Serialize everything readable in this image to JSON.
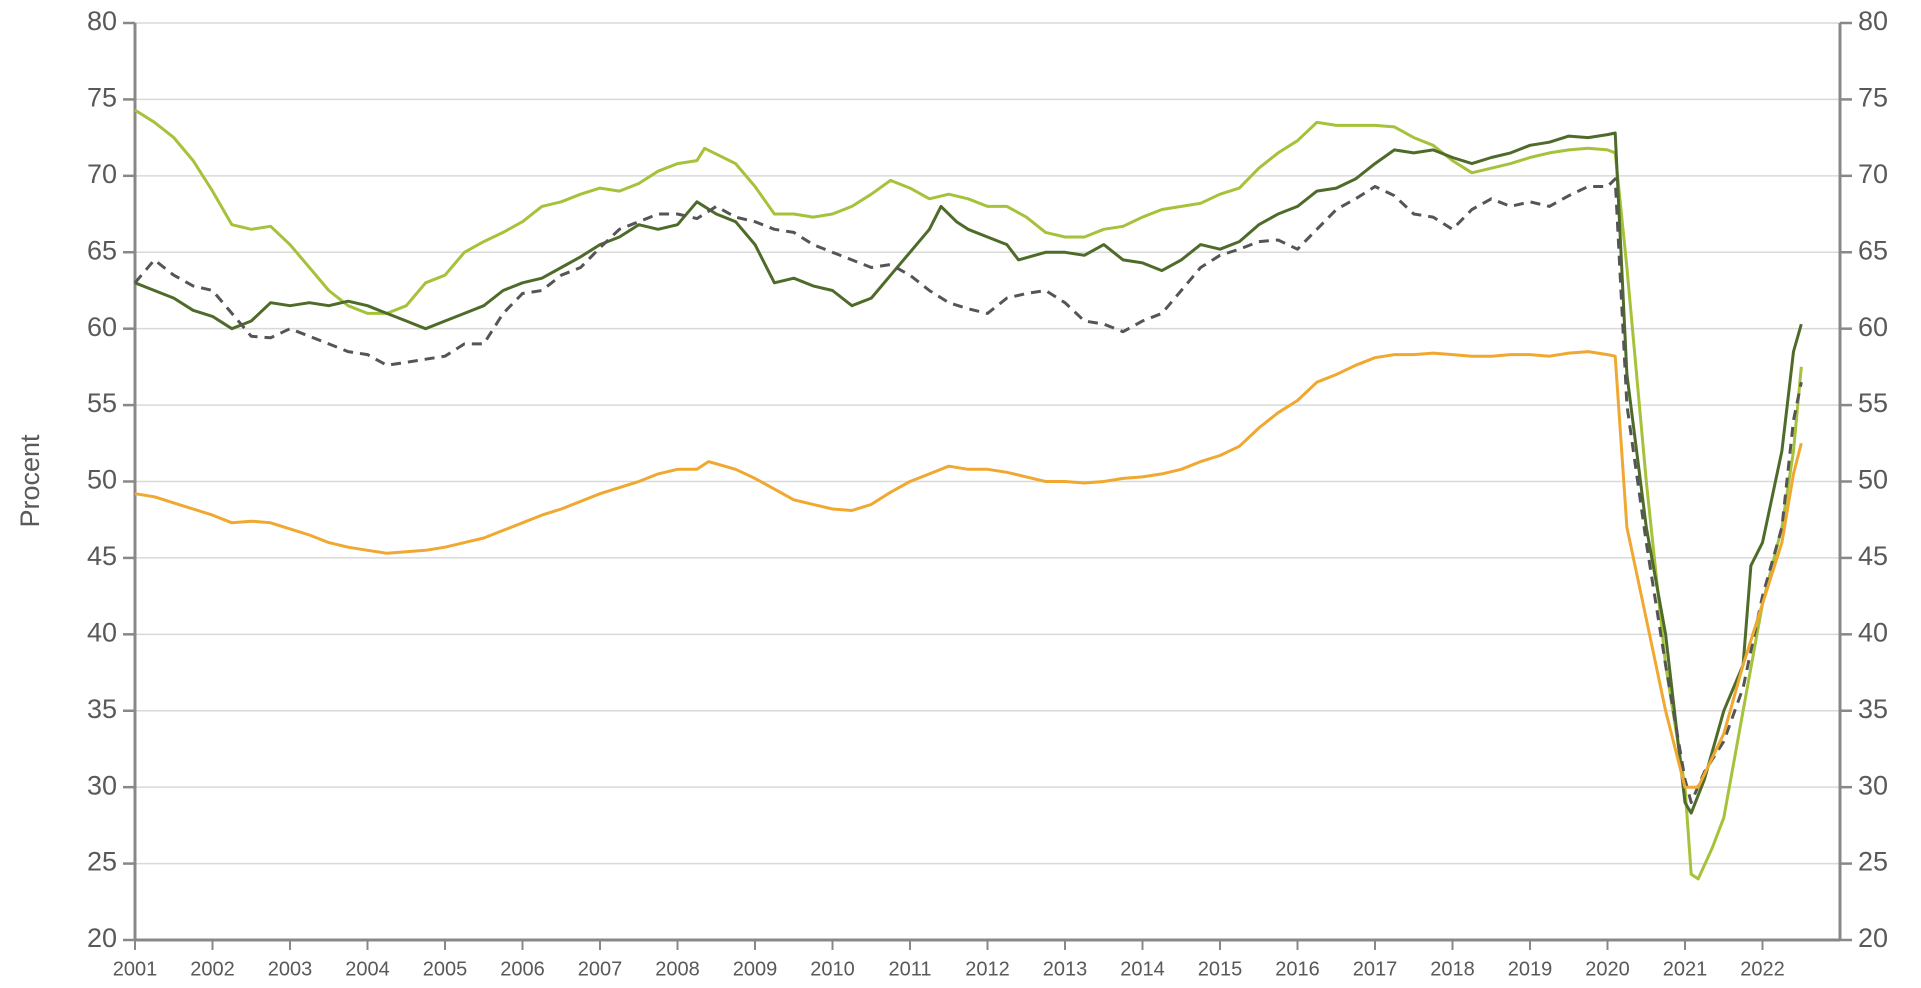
{
  "chart_data": {
    "type": "line",
    "y_label": "Procent",
    "xlim": [
      2001,
      2023
    ],
    "xticks": [
      2001,
      2002,
      2003,
      2004,
      2005,
      2006,
      2007,
      2008,
      2009,
      2010,
      2011,
      2012,
      2013,
      2014,
      2015,
      2016,
      2017,
      2018,
      2019,
      2020,
      2021,
      2022
    ],
    "ylim": [
      20,
      80
    ],
    "yticks": [
      20,
      25,
      30,
      35,
      40,
      45,
      50,
      55,
      60,
      65,
      70,
      75,
      80
    ],
    "y2lim": [
      20,
      80
    ],
    "y2ticks": [
      20,
      25,
      30,
      35,
      40,
      45,
      50,
      55,
      60,
      65,
      70,
      75,
      80
    ],
    "grid": true,
    "series": [
      {
        "color": "#a5c23a",
        "dash": false,
        "x": [
          2001,
          2001.25,
          2001.5,
          2001.75,
          2002,
          2002.25,
          2002.5,
          2002.75,
          2003,
          2003.25,
          2003.5,
          2003.75,
          2004,
          2004.25,
          2004.5,
          2004.75,
          2005,
          2005.25,
          2005.5,
          2005.75,
          2006,
          2006.25,
          2006.5,
          2006.75,
          2007,
          2007.25,
          2007.5,
          2007.75,
          2008,
          2008.25,
          2008.35,
          2008.75,
          2009,
          2009.25,
          2009.5,
          2009.75,
          2010,
          2010.25,
          2010.5,
          2010.75,
          2011,
          2011.25,
          2011.5,
          2011.75,
          2012,
          2012.25,
          2012.5,
          2012.75,
          2013,
          2013.25,
          2013.5,
          2013.75,
          2014,
          2014.25,
          2014.5,
          2014.75,
          2015,
          2015.25,
          2015.5,
          2015.75,
          2016,
          2016.25,
          2016.5,
          2016.75,
          2017,
          2017.25,
          2017.5,
          2017.75,
          2018,
          2018.25,
          2018.5,
          2018.75,
          2019,
          2019.25,
          2019.5,
          2019.75,
          2020,
          2020.1,
          2020.25,
          2020.5,
          2020.75,
          2021,
          2021.08,
          2021.17,
          2021.35,
          2021.5,
          2021.75,
          2022,
          2022.25,
          2022.4,
          2022.5
        ],
        "values": [
          74.3,
          73.5,
          72.5,
          71,
          69,
          66.8,
          66.5,
          66.7,
          65.5,
          64,
          62.5,
          61.5,
          61,
          61,
          61.5,
          63,
          63.5,
          65,
          65.7,
          66.3,
          67,
          68,
          68.3,
          68.8,
          69.2,
          69,
          69.5,
          70.3,
          70.8,
          71,
          71.8,
          70.8,
          69.3,
          67.5,
          67.5,
          67.3,
          67.5,
          68,
          68.8,
          69.7,
          69.2,
          68.5,
          68.8,
          68.5,
          68,
          68,
          67.3,
          66.3,
          66,
          66,
          66.5,
          66.7,
          67.3,
          67.8,
          68,
          68.2,
          68.8,
          69.2,
          70.5,
          71.5,
          72.3,
          73.5,
          73.3,
          73.3,
          73.3,
          73.2,
          72.5,
          72,
          71,
          70.2,
          70.5,
          70.8,
          71.2,
          71.5,
          71.7,
          71.8,
          71.7,
          71.5,
          64,
          50,
          38,
          30,
          24.3,
          24,
          26,
          28,
          35,
          42,
          47,
          52,
          57.5
        ]
      },
      {
        "color": "#4e6b2a",
        "dash": false,
        "x": [
          2001,
          2001.25,
          2001.5,
          2001.75,
          2002,
          2002.25,
          2002.5,
          2002.75,
          2003,
          2003.25,
          2003.5,
          2003.75,
          2004,
          2004.25,
          2004.5,
          2004.75,
          2005,
          2005.25,
          2005.5,
          2005.75,
          2006,
          2006.25,
          2006.5,
          2006.75,
          2007,
          2007.25,
          2007.5,
          2007.75,
          2008,
          2008.25,
          2008.5,
          2008.75,
          2009,
          2009.25,
          2009.5,
          2009.75,
          2010,
          2010.25,
          2010.5,
          2010.75,
          2011,
          2011.25,
          2011.4,
          2011.6,
          2011.75,
          2012,
          2012.25,
          2012.4,
          2012.75,
          2013,
          2013.25,
          2013.5,
          2013.75,
          2014,
          2014.25,
          2014.5,
          2014.75,
          2015,
          2015.25,
          2015.5,
          2015.75,
          2016,
          2016.25,
          2016.5,
          2016.75,
          2017,
          2017.25,
          2017.5,
          2017.75,
          2018,
          2018.25,
          2018.5,
          2018.75,
          2019,
          2019.25,
          2019.5,
          2019.75,
          2020,
          2020.1,
          2020.25,
          2020.5,
          2020.75,
          2021,
          2021.08,
          2021.25,
          2021.5,
          2021.75,
          2021.85,
          2022,
          2022.25,
          2022.4,
          2022.5
        ],
        "values": [
          63,
          62.5,
          62,
          61.2,
          60.8,
          60,
          60.5,
          61.7,
          61.5,
          61.7,
          61.5,
          61.8,
          61.5,
          61,
          60.5,
          60,
          60.5,
          61,
          61.5,
          62.5,
          63,
          63.3,
          64,
          64.7,
          65.5,
          66,
          66.8,
          66.5,
          66.8,
          68.3,
          67.5,
          67,
          65.5,
          63,
          63.3,
          62.8,
          62.5,
          61.5,
          62,
          63.5,
          65,
          66.5,
          68,
          67,
          66.5,
          66,
          65.5,
          64.5,
          65,
          65,
          64.8,
          65.5,
          64.5,
          64.3,
          63.8,
          64.5,
          65.5,
          65.2,
          65.7,
          66.8,
          67.5,
          68,
          69,
          69.2,
          69.8,
          70.8,
          71.7,
          71.5,
          71.7,
          71.2,
          70.8,
          71.2,
          71.5,
          72,
          72.2,
          72.6,
          72.5,
          72.7,
          72.8,
          57,
          47,
          40,
          29,
          28.3,
          30.5,
          35,
          38,
          44.5,
          46,
          52,
          58.5,
          60.3
        ]
      },
      {
        "color": "#555555",
        "dash": true,
        "x": [
          2001,
          2001.25,
          2001.5,
          2001.75,
          2002,
          2002.25,
          2002.5,
          2002.75,
          2003,
          2003.25,
          2003.5,
          2003.75,
          2004,
          2004.25,
          2004.5,
          2004.75,
          2005,
          2005.25,
          2005.5,
          2005.75,
          2006,
          2006.25,
          2006.5,
          2006.75,
          2007,
          2007.25,
          2007.5,
          2007.75,
          2008,
          2008.25,
          2008.5,
          2008.75,
          2009,
          2009.25,
          2009.5,
          2009.75,
          2010,
          2010.25,
          2010.5,
          2010.75,
          2011,
          2011.25,
          2011.5,
          2011.75,
          2012,
          2012.25,
          2012.5,
          2012.75,
          2013,
          2013.25,
          2013.5,
          2013.75,
          2014,
          2014.25,
          2014.5,
          2014.75,
          2015,
          2015.25,
          2015.5,
          2015.75,
          2016,
          2016.25,
          2016.5,
          2016.75,
          2017,
          2017.25,
          2017.5,
          2017.75,
          2018,
          2018.25,
          2018.5,
          2018.75,
          2019,
          2019.25,
          2019.5,
          2019.75,
          2020,
          2020.1,
          2020.25,
          2020.5,
          2020.75,
          2021,
          2021.08,
          2021.25,
          2021.5,
          2021.75,
          2022,
          2022.25,
          2022.4,
          2022.5
        ],
        "values": [
          63,
          64.5,
          63.5,
          62.8,
          62.5,
          61,
          59.5,
          59.4,
          60,
          59.5,
          59,
          58.5,
          58.3,
          57.6,
          57.8,
          58,
          58.2,
          59,
          59,
          61,
          62.3,
          62.5,
          63.5,
          64,
          65.3,
          66.5,
          67,
          67.5,
          67.5,
          67.2,
          68,
          67.3,
          67,
          66.5,
          66.3,
          65.5,
          65,
          64.5,
          64,
          64.2,
          63.5,
          62.5,
          61.7,
          61.3,
          61,
          62,
          62.3,
          62.5,
          61.7,
          60.5,
          60.3,
          59.8,
          60.5,
          61,
          62.5,
          64,
          64.8,
          65.2,
          65.7,
          65.8,
          65.2,
          66.5,
          67.8,
          68.5,
          69.3,
          68.7,
          67.5,
          67.3,
          66.5,
          67.8,
          68.5,
          68,
          68.3,
          68,
          68.7,
          69.3,
          69.3,
          69.8,
          55,
          46,
          38,
          30.5,
          29,
          31,
          33,
          36.5,
          42.5,
          47,
          54,
          56.5
        ]
      },
      {
        "color": "#f0a830",
        "dash": false,
        "x": [
          2001,
          2001.25,
          2001.5,
          2001.75,
          2002,
          2002.25,
          2002.5,
          2002.75,
          2003,
          2003.25,
          2003.5,
          2003.75,
          2004,
          2004.25,
          2004.5,
          2004.75,
          2005,
          2005.25,
          2005.5,
          2005.75,
          2006,
          2006.25,
          2006.5,
          2006.75,
          2007,
          2007.25,
          2007.5,
          2007.75,
          2008,
          2008.25,
          2008.4,
          2008.75,
          2009,
          2009.25,
          2009.5,
          2009.75,
          2010,
          2010.25,
          2010.5,
          2010.75,
          2011,
          2011.25,
          2011.5,
          2011.75,
          2012,
          2012.25,
          2012.5,
          2012.75,
          2013,
          2013.25,
          2013.5,
          2013.75,
          2014,
          2014.25,
          2014.5,
          2014.75,
          2015,
          2015.25,
          2015.5,
          2015.75,
          2016,
          2016.25,
          2016.5,
          2016.75,
          2017,
          2017.25,
          2017.5,
          2017.75,
          2018,
          2018.25,
          2018.5,
          2018.75,
          2019,
          2019.25,
          2019.5,
          2019.75,
          2020,
          2020.1,
          2020.25,
          2020.5,
          2020.75,
          2021,
          2021.17,
          2021.5,
          2021.75,
          2022,
          2022.25,
          2022.4,
          2022.5
        ],
        "values": [
          49.2,
          49,
          48.6,
          48.2,
          47.8,
          47.3,
          47.4,
          47.3,
          46.9,
          46.5,
          46,
          45.7,
          45.5,
          45.3,
          45.4,
          45.5,
          45.7,
          46,
          46.3,
          46.8,
          47.3,
          47.8,
          48.2,
          48.7,
          49.2,
          49.6,
          50,
          50.5,
          50.8,
          50.8,
          51.3,
          50.8,
          50.2,
          49.5,
          48.8,
          48.5,
          48.2,
          48.1,
          48.5,
          49.3,
          50,
          50.5,
          51,
          50.8,
          50.8,
          50.6,
          50.3,
          50,
          50,
          49.9,
          50,
          50.2,
          50.3,
          50.5,
          50.8,
          51.3,
          51.7,
          52.3,
          53.5,
          54.5,
          55.3,
          56.5,
          57,
          57.6,
          58.1,
          58.3,
          58.3,
          58.4,
          58.3,
          58.2,
          58.2,
          58.3,
          58.3,
          58.2,
          58.4,
          58.5,
          58.3,
          58.2,
          47,
          41,
          35,
          30,
          30,
          33.5,
          38,
          42,
          46,
          50.5,
          52.5
        ]
      }
    ]
  }
}
